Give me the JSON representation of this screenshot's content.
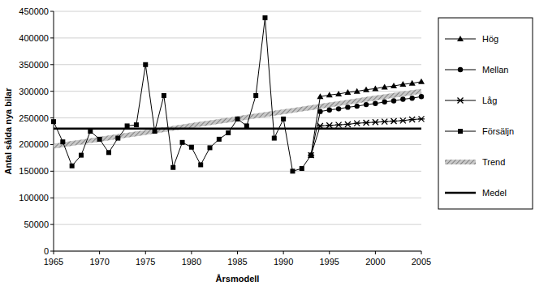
{
  "chart_data": {
    "type": "line",
    "x_label": "Årsmodell",
    "y_label": "Antal sålda nya bilar",
    "x": [
      1965,
      1966,
      1967,
      1968,
      1969,
      1970,
      1971,
      1972,
      1973,
      1974,
      1975,
      1976,
      1977,
      1978,
      1979,
      1980,
      1981,
      1982,
      1983,
      1984,
      1985,
      1986,
      1987,
      1988,
      1989,
      1990,
      1991,
      1992,
      1993,
      1994,
      1995,
      1996,
      1997,
      1998,
      1999,
      2000,
      2001,
      2002,
      2003,
      2004,
      2005
    ],
    "series": [
      {
        "name": "Hög",
        "color": "#000000",
        "marker": "triangle",
        "line_style": "solid",
        "values": [
          null,
          null,
          null,
          null,
          null,
          null,
          null,
          null,
          null,
          null,
          null,
          null,
          null,
          null,
          null,
          null,
          null,
          null,
          null,
          null,
          null,
          null,
          null,
          null,
          null,
          null,
          null,
          null,
          180000,
          290000,
          293000,
          295000,
          298000,
          300000,
          303000,
          305000,
          308000,
          310000,
          313000,
          315000,
          318000
        ]
      },
      {
        "name": "Mellan",
        "color": "#000000",
        "marker": "circle",
        "line_style": "solid",
        "values": [
          null,
          null,
          null,
          null,
          null,
          null,
          null,
          null,
          null,
          null,
          null,
          null,
          null,
          null,
          null,
          null,
          null,
          null,
          null,
          null,
          null,
          null,
          null,
          null,
          null,
          null,
          null,
          null,
          180000,
          262000,
          265000,
          267000,
          270000,
          272000,
          275000,
          277000,
          280000,
          282000,
          285000,
          287000,
          290000
        ]
      },
      {
        "name": "Låg",
        "color": "#000000",
        "marker": "x",
        "line_style": "solid",
        "values": [
          null,
          null,
          null,
          null,
          null,
          null,
          null,
          null,
          null,
          null,
          null,
          null,
          null,
          null,
          null,
          null,
          null,
          null,
          null,
          null,
          null,
          null,
          null,
          null,
          null,
          null,
          null,
          null,
          180000,
          235000,
          236000,
          237000,
          238000,
          240000,
          241000,
          242000,
          243000,
          244000,
          245000,
          247000,
          248000
        ]
      },
      {
        "name": "Försäljn",
        "color": "#000000",
        "marker": "square",
        "line_style": "solid",
        "values": [
          243000,
          205000,
          160000,
          180000,
          225000,
          210000,
          185000,
          212000,
          235000,
          237000,
          350000,
          225000,
          292000,
          157000,
          204000,
          195000,
          162000,
          194000,
          210000,
          222000,
          248000,
          235000,
          292000,
          438000,
          212000,
          248000,
          150000,
          155000,
          180000,
          null,
          null,
          null,
          null,
          null,
          null,
          null,
          null,
          null,
          null,
          null,
          null
        ]
      },
      {
        "name": "Trend",
        "color": "#a0a0a0",
        "marker": "none",
        "line_style": "hatched",
        "values": [
          197000,
          199600,
          202100,
          204700,
          207300,
          209900,
          212500,
          215000,
          217600,
          220200,
          222800,
          225300,
          227900,
          230500,
          233100,
          235700,
          238200,
          240800,
          243400,
          246000,
          248500,
          251100,
          253700,
          256300,
          258900,
          261400,
          264000,
          266600,
          269200,
          271800,
          274300,
          276900,
          279500,
          282100,
          284700,
          287200,
          289800,
          292400,
          295000,
          297600,
          300000
        ]
      },
      {
        "name": "Medel",
        "color": "#000000",
        "marker": "none",
        "line_style": "thick",
        "values": [
          230000,
          230000,
          230000,
          230000,
          230000,
          230000,
          230000,
          230000,
          230000,
          230000,
          230000,
          230000,
          230000,
          230000,
          230000,
          230000,
          230000,
          230000,
          230000,
          230000,
          230000,
          230000,
          230000,
          230000,
          230000,
          230000,
          230000,
          230000,
          230000,
          230000,
          230000,
          230000,
          230000,
          230000,
          230000,
          230000,
          230000,
          230000,
          230000,
          230000,
          230000
        ]
      }
    ],
    "xlim": [
      1965,
      2005
    ],
    "xticks": [
      1965,
      1970,
      1975,
      1980,
      1985,
      1990,
      1995,
      2000,
      2005
    ],
    "ylim": [
      0,
      450000
    ],
    "yticks": [
      0,
      50000,
      100000,
      150000,
      200000,
      250000,
      300000,
      350000,
      400000,
      450000
    ],
    "grid": true,
    "legend": "right"
  }
}
